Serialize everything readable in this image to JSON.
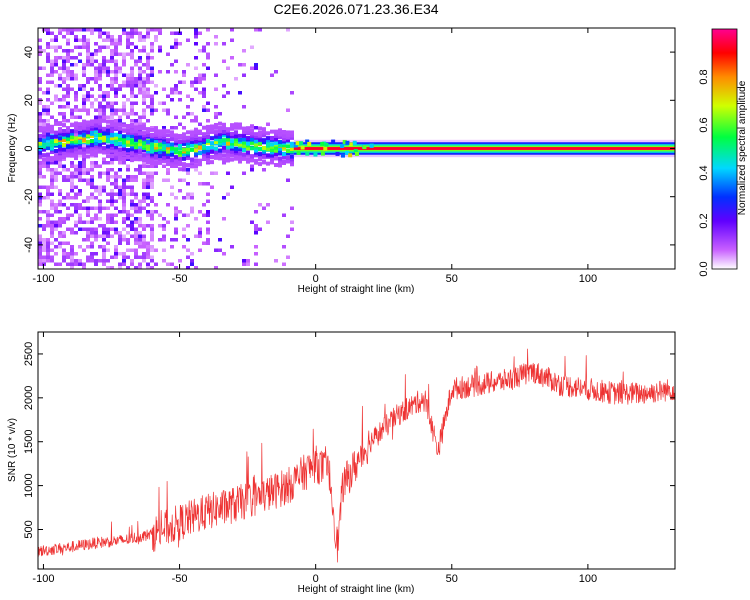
{
  "title": "C2E6.2026.071.23.36.E34",
  "chart_data": [
    {
      "type": "heatmap",
      "xlabel": "Height of straight line (km)",
      "ylabel": "Frequency (Hz)",
      "xlim": [
        -102,
        132
      ],
      "ylim": [
        -50,
        50
      ],
      "xticks": [
        -100,
        -50,
        0,
        50,
        100
      ],
      "yticks": [
        -40,
        -20,
        0,
        20,
        40
      ],
      "colorbar": {
        "label": "Normalized spectral amplitude",
        "range": [
          0,
          1
        ],
        "ticks": [
          0.0,
          0.2,
          0.4,
          0.6,
          0.8
        ],
        "tick_labels": [
          "0.0",
          "0.2",
          "0.4",
          "0.6",
          "0.8"
        ]
      },
      "ridge": {
        "description_points": [
          [
            -100,
            2
          ],
          [
            -80,
            5
          ],
          [
            -65,
            2
          ],
          [
            -50,
            -1
          ],
          [
            -35,
            3
          ],
          [
            -20,
            1
          ],
          [
            -8,
            0
          ],
          [
            132,
            0
          ]
        ],
        "carrier_start_km": -8
      }
    },
    {
      "type": "line",
      "xlabel": "Height of straight line (km)",
      "ylabel": "SNR (10 * v/v)",
      "xlim": [
        -102,
        132
      ],
      "ylim": [
        50,
        2750
      ],
      "xticks": [
        -100,
        -50,
        0,
        50,
        100
      ],
      "yticks": [
        500,
        1000,
        1500,
        2000,
        2500
      ],
      "color": "#ee3333",
      "series": [
        {
          "name": "SNR",
          "x": [
            -100,
            -90,
            -80,
            -70,
            -60,
            -50,
            -40,
            -30,
            -20,
            -10,
            0,
            5,
            8,
            10,
            15,
            20,
            30,
            40,
            45,
            50,
            60,
            70,
            80,
            90,
            100,
            110,
            120,
            132
          ],
          "y": [
            260,
            300,
            350,
            380,
            450,
            580,
            700,
            780,
            880,
            1000,
            1250,
            1150,
            300,
            1000,
            1250,
            1500,
            1800,
            2000,
            1400,
            2100,
            2150,
            2200,
            2300,
            2150,
            2100,
            2050,
            2050,
            2100
          ]
        }
      ]
    }
  ]
}
